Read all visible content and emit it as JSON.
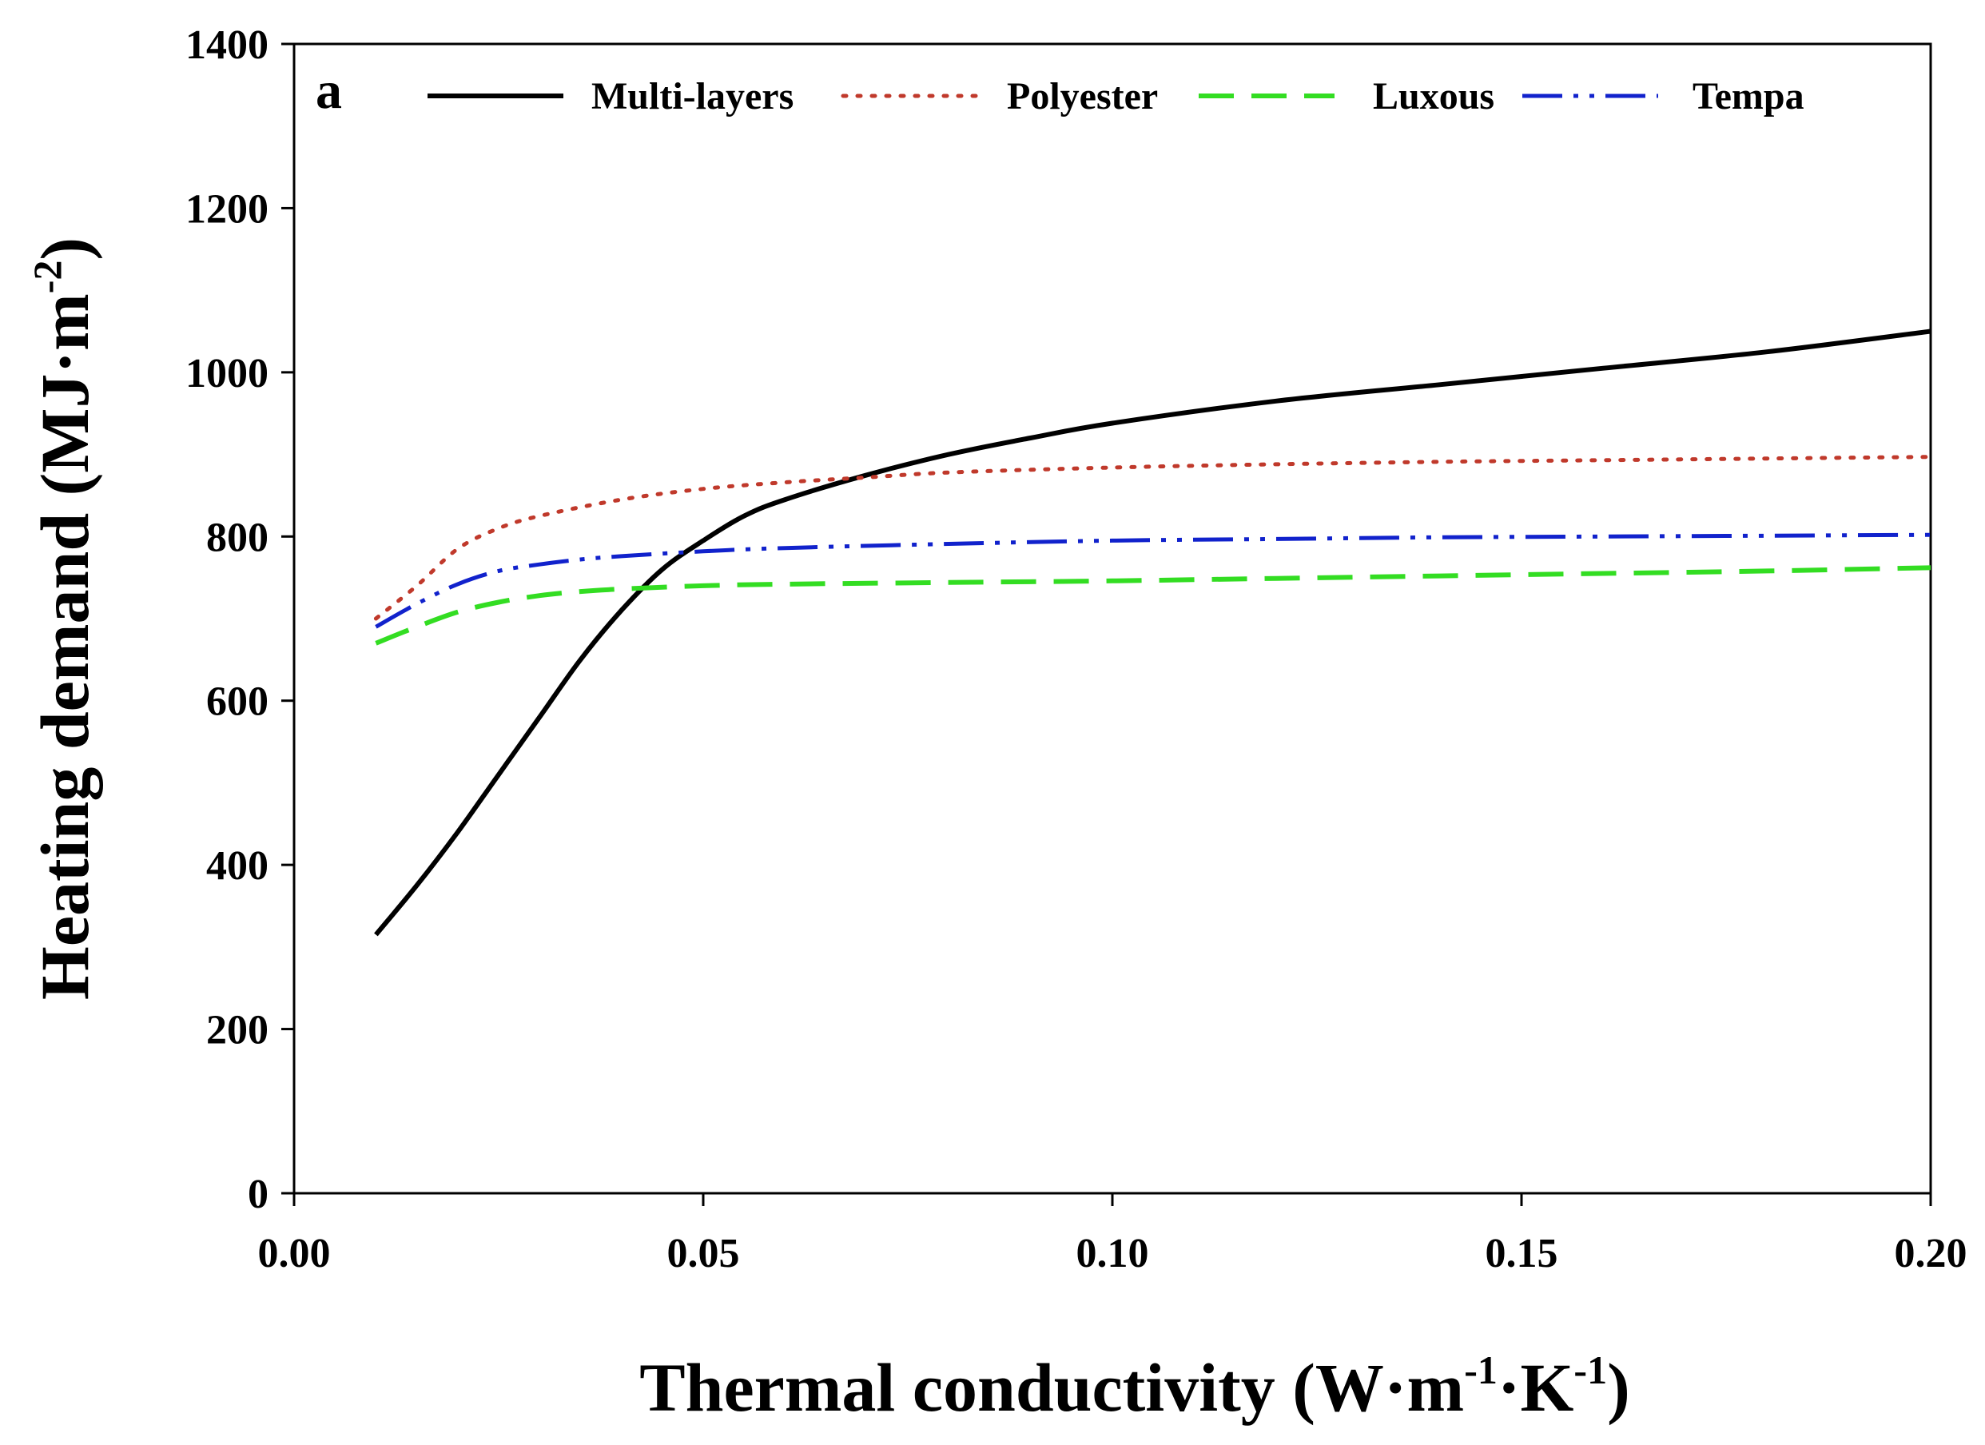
{
  "chart_data": {
    "type": "line",
    "panel_label": "a",
    "title": "",
    "xlabel_main": "Thermal conductivity (W·m",
    "xlabel_sup1": "-1",
    "xlabel_mid": "·K",
    "xlabel_sup2": "-1",
    "xlabel_end": ")",
    "ylabel_main": "Heating demand (MJ·m",
    "ylabel_sup": "-2",
    "ylabel_end": ")",
    "xlim": [
      0,
      0.2
    ],
    "ylim": [
      0,
      1400
    ],
    "x_ticks": [
      0.0,
      0.05,
      0.1,
      0.15,
      0.2
    ],
    "x_tick_labels": [
      "0.00",
      "0.05",
      "0.10",
      "0.15",
      "0.20"
    ],
    "y_ticks": [
      0,
      200,
      400,
      600,
      800,
      1000,
      1200,
      1400
    ],
    "y_tick_labels": [
      "0",
      "200",
      "400",
      "600",
      "800",
      "1000",
      "1200",
      "1400"
    ],
    "grid": false,
    "legend_position": "top",
    "series": [
      {
        "name": "Multi-layers",
        "color": "#000000",
        "dash": "solid",
        "x": [
          0.01,
          0.015,
          0.02,
          0.025,
          0.03,
          0.035,
          0.04,
          0.045,
          0.05,
          0.055,
          0.06,
          0.07,
          0.08,
          0.09,
          0.1,
          0.12,
          0.14,
          0.16,
          0.18,
          0.2
        ],
        "y": [
          315,
          375,
          440,
          510,
          580,
          650,
          710,
          760,
          795,
          825,
          845,
          875,
          900,
          920,
          938,
          965,
          985,
          1005,
          1025,
          1050
        ]
      },
      {
        "name": "Polyester",
        "color": "#c0392b",
        "dash": "dotted",
        "x": [
          0.01,
          0.015,
          0.02,
          0.025,
          0.03,
          0.04,
          0.05,
          0.06,
          0.07,
          0.08,
          0.1,
          0.12,
          0.14,
          0.16,
          0.18,
          0.2
        ],
        "y": [
          700,
          740,
          785,
          810,
          825,
          845,
          858,
          866,
          872,
          878,
          884,
          888,
          891,
          893,
          895,
          897
        ]
      },
      {
        "name": "Luxous",
        "color": "#33dd22",
        "dash": "dashed",
        "x": [
          0.01,
          0.015,
          0.02,
          0.025,
          0.03,
          0.035,
          0.04,
          0.05,
          0.06,
          0.08,
          0.1,
          0.12,
          0.14,
          0.16,
          0.18,
          0.2
        ],
        "y": [
          670,
          690,
          708,
          720,
          728,
          733,
          736,
          740,
          742,
          744,
          746,
          749,
          752,
          755,
          758,
          762
        ]
      },
      {
        "name": "Tempa",
        "color": "#1122cc",
        "dash": "dash-dot-dot",
        "x": [
          0.01,
          0.015,
          0.02,
          0.025,
          0.03,
          0.035,
          0.04,
          0.05,
          0.06,
          0.08,
          0.1,
          0.12,
          0.14,
          0.16,
          0.18,
          0.2
        ],
        "y": [
          690,
          718,
          742,
          758,
          766,
          772,
          776,
          782,
          786,
          791,
          795,
          797,
          799,
          800,
          801,
          802
        ]
      }
    ]
  }
}
